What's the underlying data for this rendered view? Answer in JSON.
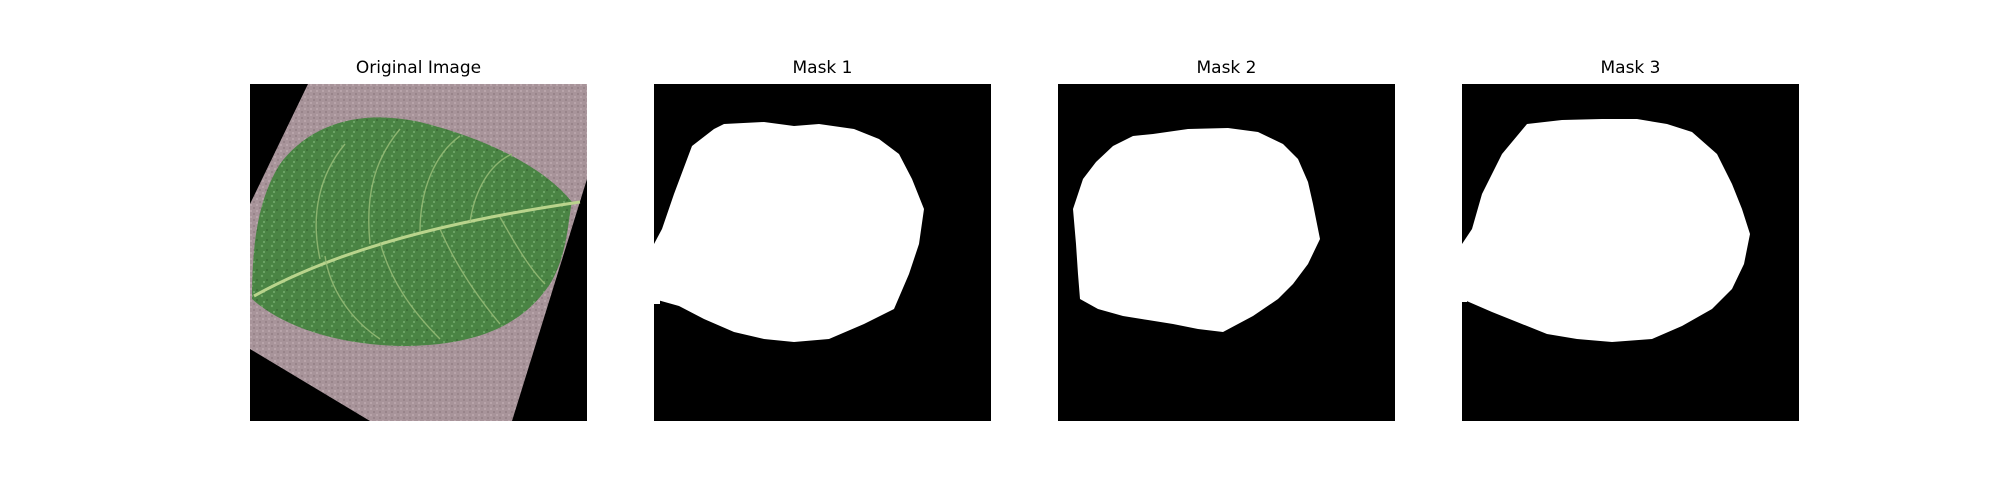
{
  "panels": [
    {
      "title": "Original Image",
      "content": "leaf-photo"
    },
    {
      "title": "Mask 1",
      "content": "binary-mask"
    },
    {
      "title": "Mask 2",
      "content": "binary-mask"
    },
    {
      "title": "Mask 3",
      "content": "binary-mask"
    }
  ],
  "colors": {
    "background": "#ffffff",
    "mask_background": "#000000",
    "mask_foreground": "#ffffff",
    "leaf": "#4f8c48",
    "paper": "#a89298"
  }
}
